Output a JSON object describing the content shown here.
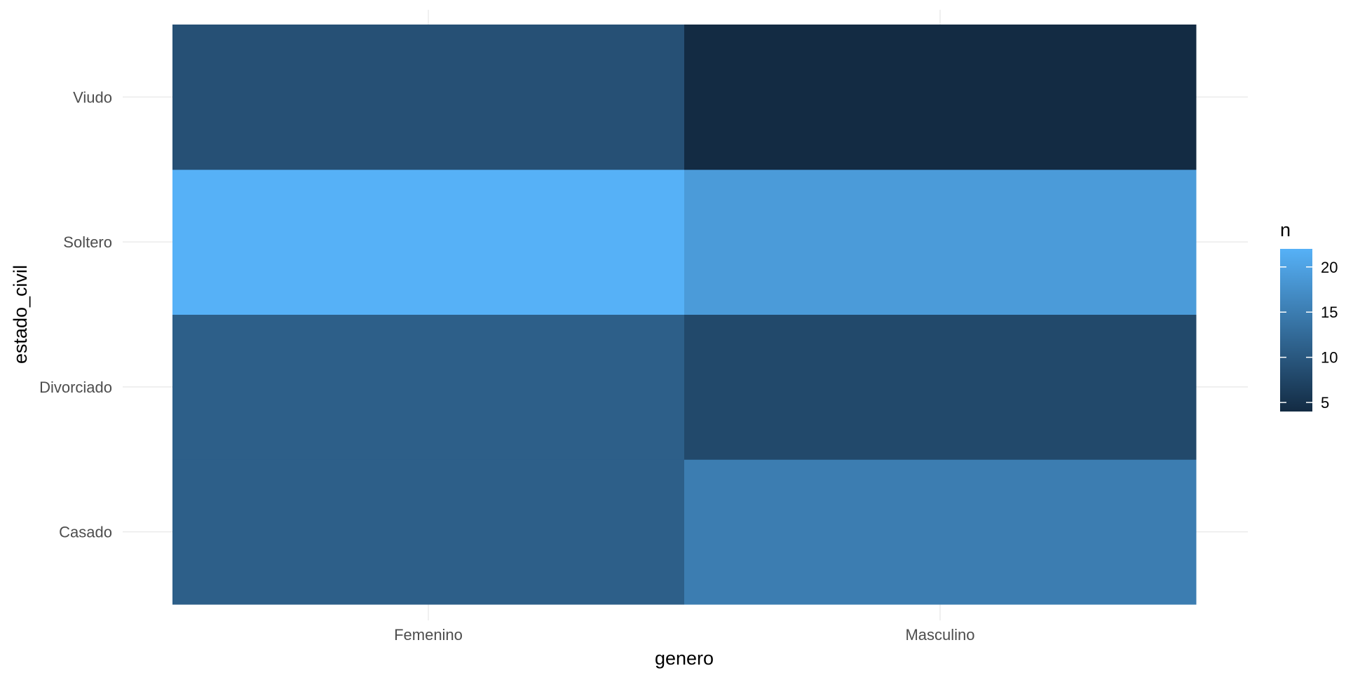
{
  "chart_data": {
    "type": "heatmap",
    "title": "",
    "xlabel": "genero",
    "ylabel": "estado_civil",
    "x_categories": [
      "Femenino",
      "Masculino"
    ],
    "y_categories": [
      "Casado",
      "Divorciado",
      "Soltero",
      "Viudo"
    ],
    "cells": [
      {
        "x": "Femenino",
        "y": "Casado",
        "n": 11
      },
      {
        "x": "Femenino",
        "y": "Divorciado",
        "n": 11
      },
      {
        "x": "Femenino",
        "y": "Soltero",
        "n": 22
      },
      {
        "x": "Femenino",
        "y": "Viudo",
        "n": 9
      },
      {
        "x": "Masculino",
        "y": "Casado",
        "n": 15
      },
      {
        "x": "Masculino",
        "y": "Divorciado",
        "n": 8
      },
      {
        "x": "Masculino",
        "y": "Soltero",
        "n": 19
      },
      {
        "x": "Masculino",
        "y": "Viudo",
        "n": 4
      }
    ],
    "legend": {
      "title": "n",
      "placement": "right",
      "ticks": [
        5,
        10,
        15,
        20
      ],
      "range": [
        4,
        22
      ],
      "low_color": "#132B43",
      "high_color": "#56B1F7"
    },
    "grid": true
  }
}
